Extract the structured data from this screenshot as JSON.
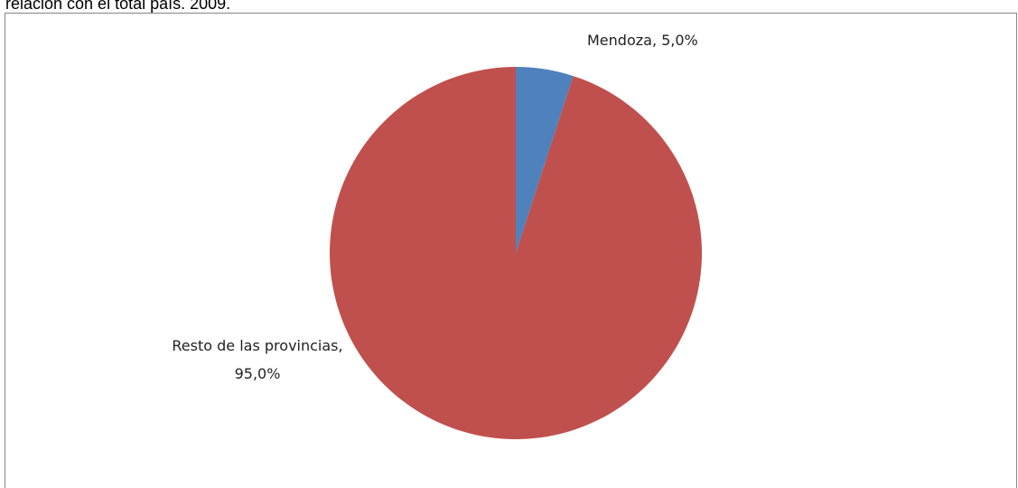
{
  "chart_data": {
    "type": "pie",
    "title": "relación con el total país. 2009.",
    "values": [
      5,
      95
    ],
    "value_labels": [
      "Mendoza, 5,0%",
      "Resto de las provincias, 95,0%"
    ],
    "colors": [
      "#4f81bd",
      "#c0504d"
    ]
  }
}
